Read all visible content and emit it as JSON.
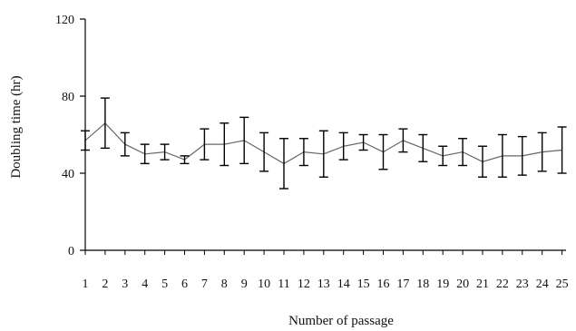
{
  "chart_data": {
    "type": "line",
    "title": "",
    "xlabel": "Number of passage",
    "ylabel": "Doubling time (hr)",
    "ylim": [
      0,
      120
    ],
    "yticks": [
      0,
      40,
      80,
      120
    ],
    "grid": false,
    "legend": "none",
    "categories": [
      "1",
      "2",
      "3",
      "4",
      "5",
      "6",
      "7",
      "8",
      "9",
      "10",
      "11",
      "12",
      "13",
      "14",
      "15",
      "16",
      "17",
      "18",
      "19",
      "20",
      "21",
      "22",
      "23",
      "24",
      "25"
    ],
    "series": [
      {
        "values": [
          57,
          66,
          55,
          50,
          51,
          47,
          55,
          55,
          57,
          51,
          45,
          51,
          50,
          54,
          56,
          51,
          57,
          53,
          49,
          51,
          46,
          49,
          49,
          51,
          52
        ],
        "error": [
          5,
          13,
          6,
          5,
          4,
          2,
          8,
          11,
          12,
          10,
          13,
          7,
          12,
          7,
          4,
          9,
          6,
          7,
          5,
          7,
          8,
          11,
          10,
          10,
          12
        ]
      }
    ],
    "colors": {
      "line": "#666666",
      "error_bar": "#000000",
      "axis": "#000000"
    }
  }
}
